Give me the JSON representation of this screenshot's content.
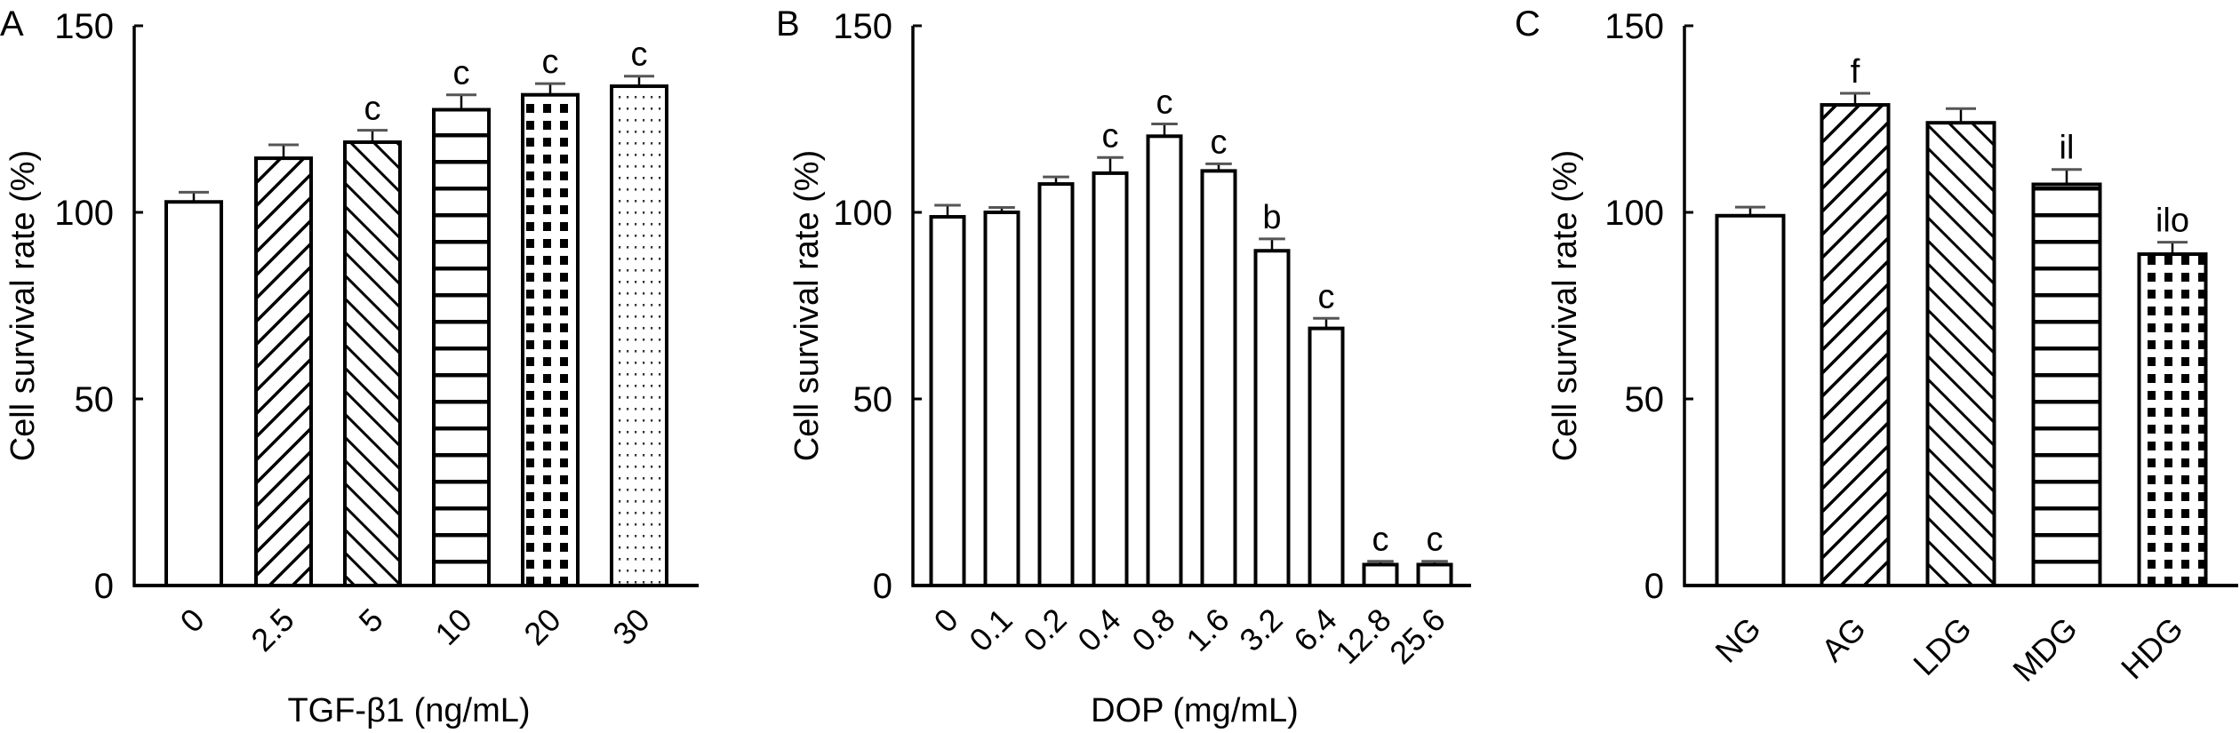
{
  "chart_data": [
    {
      "type": "bar",
      "panel_label": "A",
      "title": "",
      "xlabel": "TGF-β1 (ng/mL)",
      "ylabel": "Cell survival rate (%)",
      "ylim": [
        0,
        150
      ],
      "yticks": [
        0,
        50,
        100,
        150
      ],
      "grid": false,
      "categories": [
        "0",
        "2.5",
        "5",
        "10",
        "20",
        "30"
      ],
      "values": [
        102.8,
        114.5,
        118.8,
        127.5,
        131.5,
        133.8
      ],
      "error": [
        2.6,
        3.6,
        3.2,
        4.0,
        3.0,
        2.7
      ],
      "annotations": [
        "",
        "",
        "c",
        "c",
        "c",
        "c"
      ],
      "patterns": [
        "none",
        "diag-up",
        "diag-down",
        "horizontal",
        "checker",
        "dots"
      ]
    },
    {
      "type": "bar",
      "panel_label": "B",
      "title": "",
      "xlabel": "DOP (mg/mL)",
      "ylabel": "Cell survival rate (%)",
      "ylim": [
        0,
        150
      ],
      "yticks": [
        0,
        50,
        100,
        150
      ],
      "grid": false,
      "categories": [
        "0",
        "0.1",
        "0.2",
        "0.4",
        "0.8",
        "1.6",
        "3.2",
        "6.4",
        "12.8",
        "25.6"
      ],
      "values": [
        98.8,
        100.0,
        107.6,
        110.5,
        120.4,
        111.1,
        89.7,
        68.9,
        5.6,
        5.6
      ],
      "error": [
        3.1,
        1.3,
        1.9,
        4.2,
        3.3,
        1.9,
        3.2,
        2.7,
        0.9,
        0.9
      ],
      "annotations": [
        "",
        "",
        "",
        "c",
        "c",
        "c",
        "b",
        "c",
        "c",
        "c"
      ],
      "patterns": [
        "none",
        "none",
        "none",
        "none",
        "none",
        "none",
        "none",
        "none",
        "none",
        "none"
      ]
    },
    {
      "type": "bar",
      "panel_label": "C",
      "title": "",
      "xlabel": "",
      "ylabel": "Cell survival rate (%)",
      "ylim": [
        0,
        150
      ],
      "yticks": [
        0,
        50,
        100,
        150
      ],
      "grid": false,
      "categories": [
        "NG",
        "AG",
        "LDG",
        "MDG",
        "HDG"
      ],
      "values": [
        99.1,
        128.8,
        124.0,
        107.5,
        88.8
      ],
      "error": [
        2.3,
        3.1,
        3.8,
        4.0,
        3.2
      ],
      "annotations": [
        "",
        "f",
        "",
        "il",
        "ilo"
      ],
      "patterns": [
        "none",
        "diag-up",
        "diag-down",
        "horizontal",
        "checker"
      ]
    }
  ]
}
